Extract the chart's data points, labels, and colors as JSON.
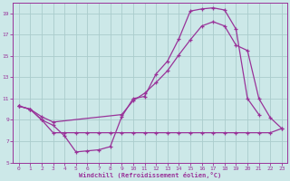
{
  "bg_color": "#cce8e8",
  "grid_color": "#aacccc",
  "line_color": "#993399",
  "xlabel": "Windchill (Refroidissement éolien,°C)",
  "xlim": [
    -0.5,
    23.5
  ],
  "ylim": [
    5,
    20
  ],
  "yticks": [
    5,
    7,
    9,
    11,
    13,
    15,
    17,
    19
  ],
  "xticks": [
    0,
    1,
    2,
    3,
    4,
    5,
    6,
    7,
    8,
    9,
    10,
    11,
    12,
    13,
    14,
    15,
    16,
    17,
    18,
    19,
    20,
    21,
    22,
    23
  ],
  "curve1_x": [
    0,
    1,
    2,
    3,
    4,
    5,
    6,
    7,
    8,
    9,
    10,
    11,
    12,
    13,
    14,
    15,
    16,
    17,
    18,
    19,
    20,
    21
  ],
  "curve1_y": [
    10.3,
    10.0,
    9.0,
    8.5,
    7.5,
    6.0,
    6.1,
    6.2,
    6.5,
    9.3,
    11.0,
    11.2,
    13.3,
    14.5,
    16.6,
    19.2,
    19.4,
    19.5,
    19.3,
    17.5,
    11.0,
    9.5
  ],
  "curve2_x": [
    0,
    1,
    2,
    3,
    9,
    10,
    11,
    12,
    13,
    14,
    15,
    16,
    17,
    18,
    19,
    20,
    21,
    22,
    23
  ],
  "curve2_y": [
    10.3,
    10.0,
    9.3,
    8.8,
    9.5,
    10.8,
    11.5,
    12.5,
    13.6,
    15.1,
    16.5,
    17.8,
    18.2,
    17.8,
    16.0,
    15.5,
    11.0,
    9.2,
    8.2
  ],
  "curve3_x": [
    0,
    1,
    2,
    3,
    4,
    5,
    6,
    7,
    8,
    9,
    10,
    11,
    12,
    13,
    14,
    15,
    16,
    17,
    18,
    19,
    20,
    21,
    22,
    23
  ],
  "curve3_y": [
    10.3,
    10.0,
    9.0,
    7.8,
    7.8,
    7.8,
    7.8,
    7.8,
    7.8,
    7.8,
    7.8,
    7.8,
    7.8,
    7.8,
    7.8,
    7.8,
    7.8,
    7.8,
    7.8,
    7.8,
    7.8,
    7.8,
    7.8,
    8.2
  ]
}
